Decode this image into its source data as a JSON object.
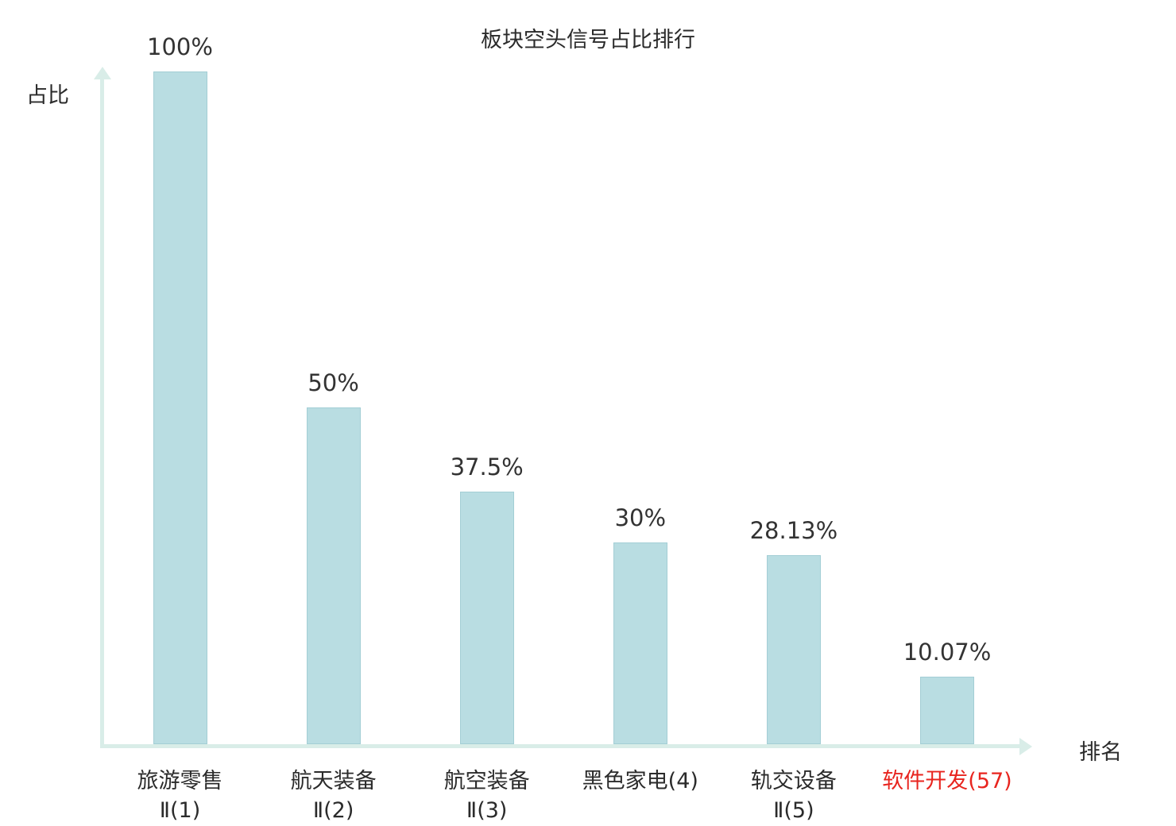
{
  "chart_data": {
    "type": "bar",
    "title": "板块空头信号占比排行",
    "ylabel": "占比",
    "xlabel": "排名",
    "categories": [
      {
        "lines": [
          "旅游零售",
          "Ⅱ(1)"
        ],
        "highlight": false
      },
      {
        "lines": [
          "航天装备",
          "Ⅱ(2)"
        ],
        "highlight": false
      },
      {
        "lines": [
          "航空装备",
          "Ⅱ(3)"
        ],
        "highlight": false
      },
      {
        "lines": [
          "黑色家电(4)"
        ],
        "highlight": false
      },
      {
        "lines": [
          "轨交设备",
          "Ⅱ(5)"
        ],
        "highlight": false
      },
      {
        "lines": [
          "软件开发(57)"
        ],
        "highlight": true
      }
    ],
    "values": [
      100,
      50,
      37.5,
      30,
      28.13,
      10.07
    ],
    "value_labels": [
      "100%",
      "50%",
      "37.5%",
      "30%",
      "28.13%",
      "10.07%"
    ],
    "ylim": [
      0,
      100
    ],
    "grid": false,
    "legend": "none",
    "colors": {
      "bar_fill": "#b9dde2",
      "bar_border": "#a3ced5",
      "axis": "#d9ede8",
      "text": "#2b2b2b",
      "highlight_text": "#e8251f"
    }
  }
}
